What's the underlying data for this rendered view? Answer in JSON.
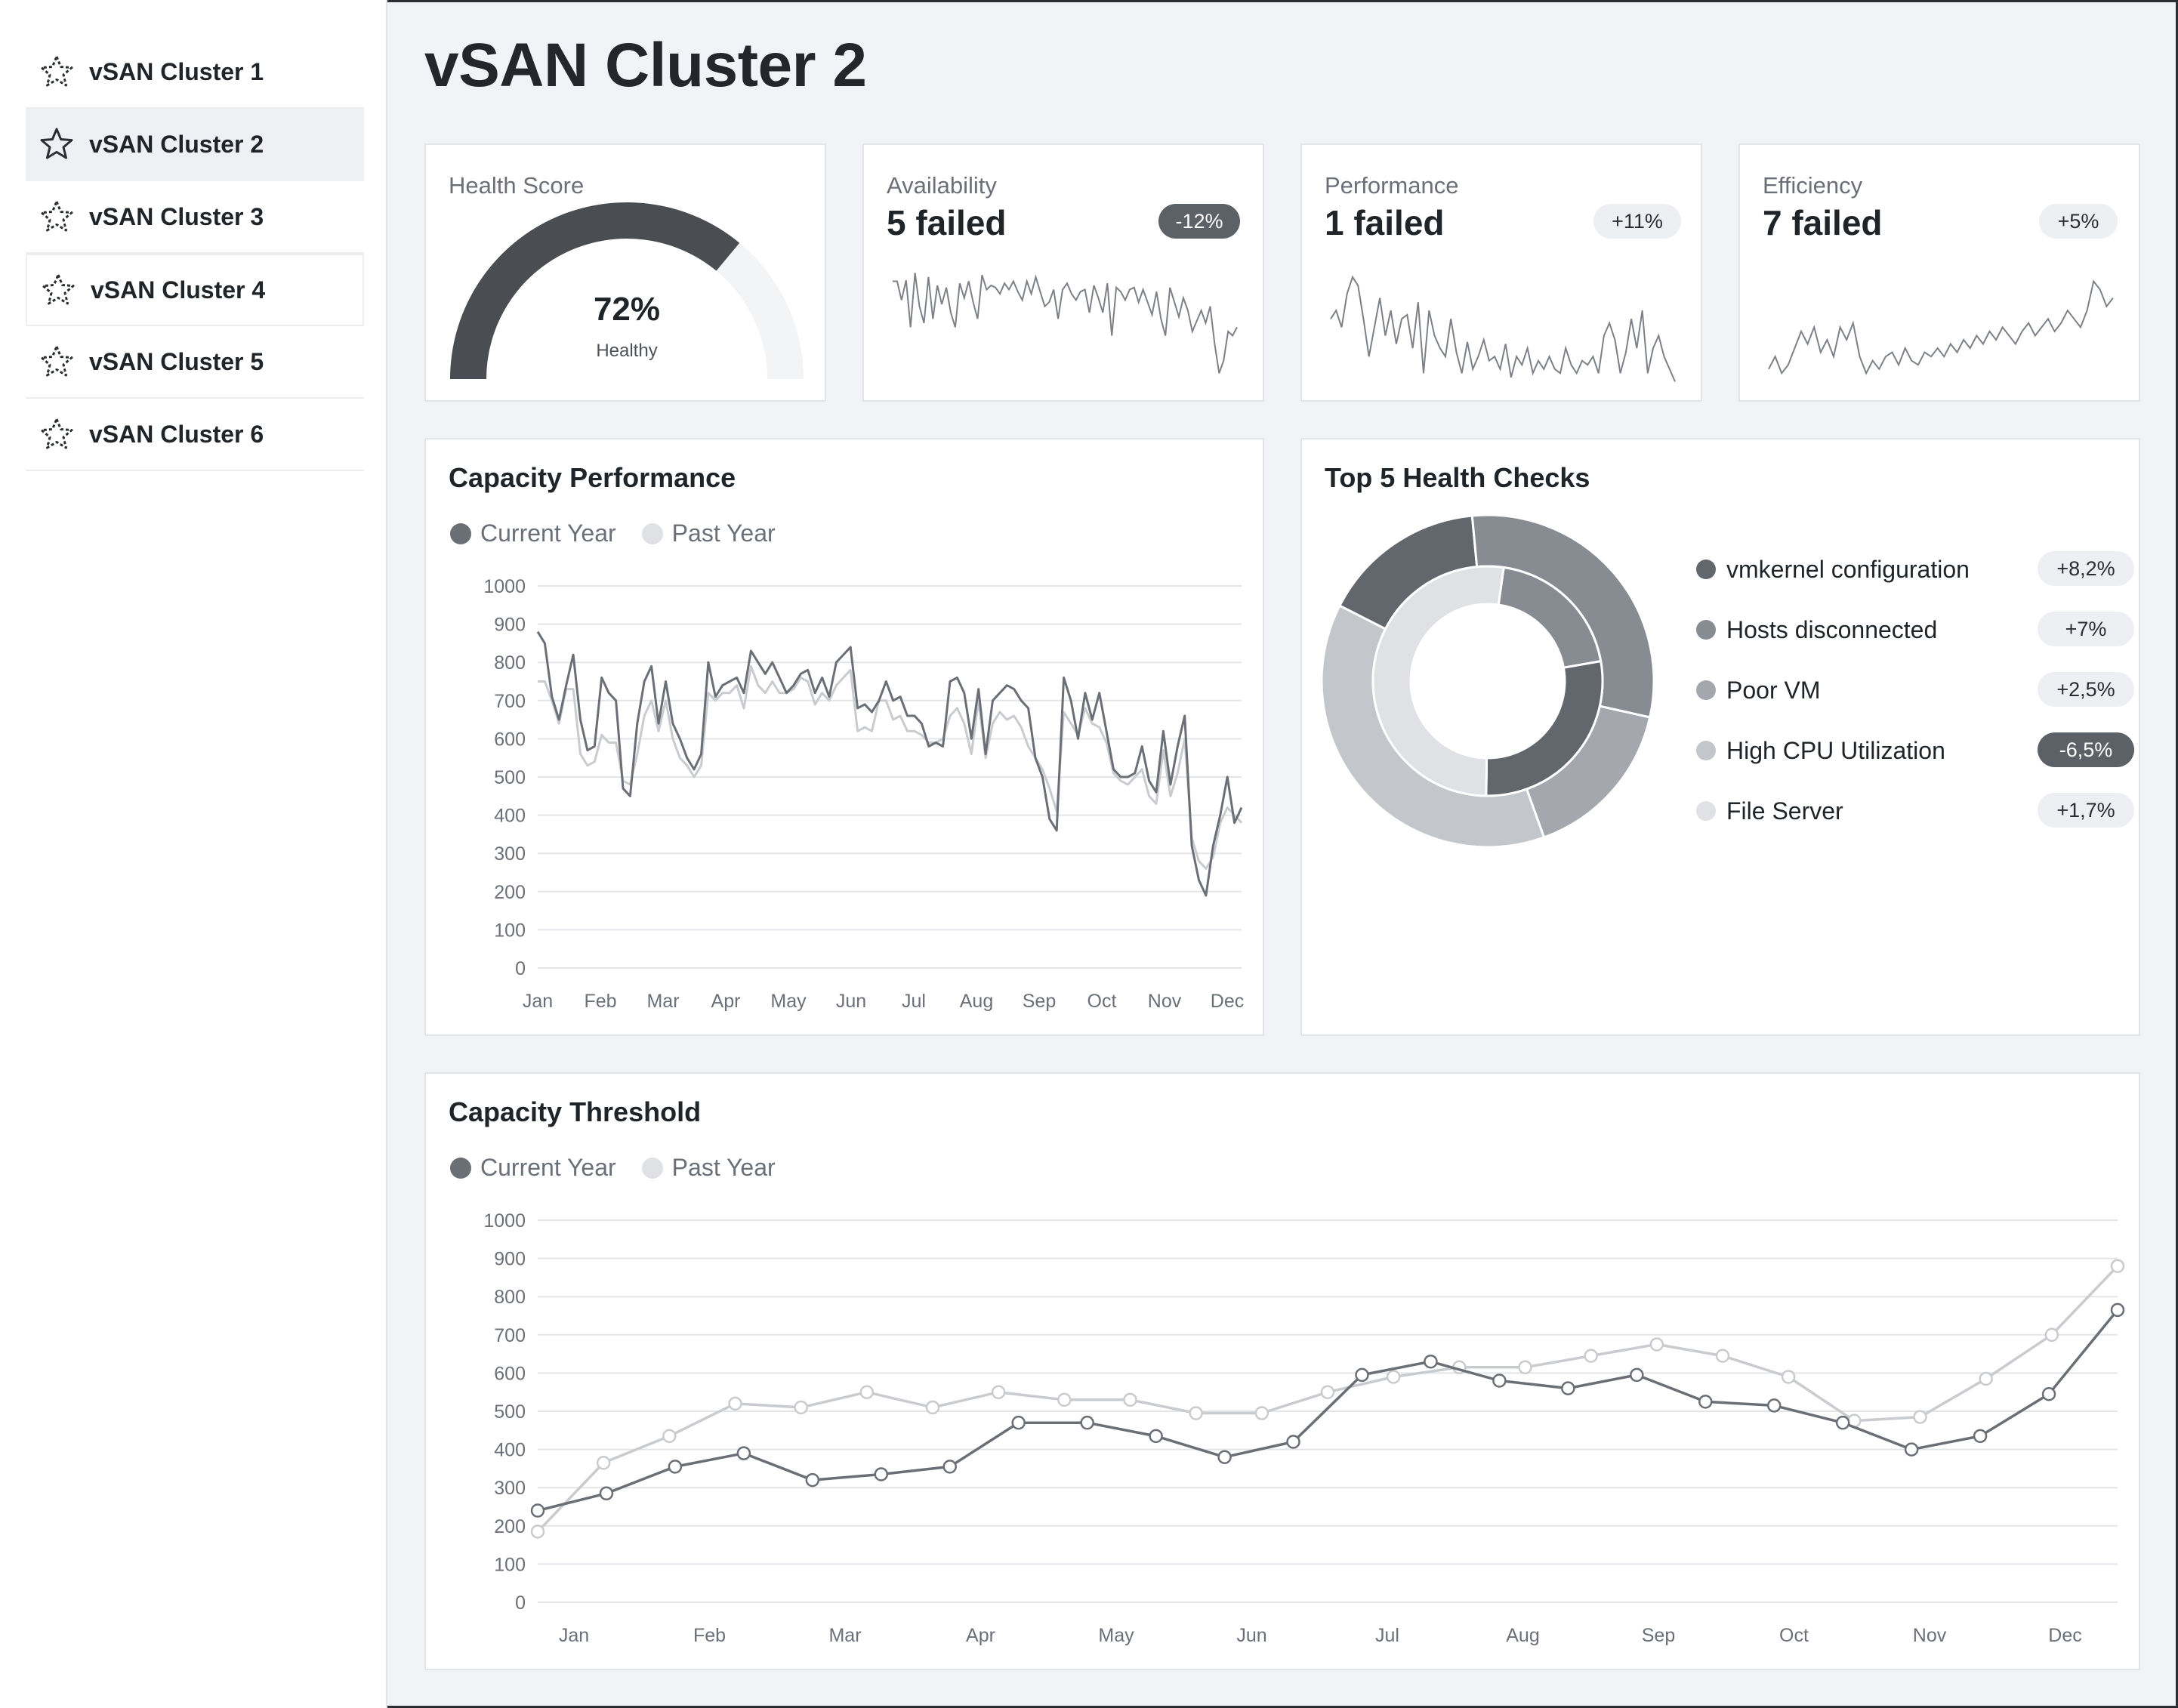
{
  "sidebar": {
    "items": [
      {
        "label": "vSAN Cluster 1",
        "icon": "star-outline-dashed-icon"
      },
      {
        "label": "vSAN Cluster 2",
        "icon": "star-outline-icon",
        "active": true
      },
      {
        "label": "vSAN Cluster 3",
        "icon": "star-outline-dashed-icon"
      },
      {
        "label": "vSAN Cluster 4",
        "icon": "star-outline-dashed-icon"
      },
      {
        "label": "vSAN Cluster 5",
        "icon": "star-outline-dashed-icon"
      },
      {
        "label": "vSAN Cluster 6",
        "icon": "star-outline-dashed-icon"
      }
    ]
  },
  "page": {
    "title": "vSAN Cluster 2"
  },
  "kpis": {
    "health": {
      "label": "Health Score",
      "value": "72%",
      "status": "Healthy",
      "fraction": 0.72
    },
    "availability": {
      "label": "Availability",
      "value": "5 failed",
      "change": "-12%"
    },
    "performance": {
      "label": "Performance",
      "value": "1 failed",
      "change": "+11%"
    },
    "efficiency": {
      "label": "Efficiency",
      "value": "7 failed",
      "change": "+5%"
    }
  },
  "capacity_performance": {
    "title": "Capacity Performance",
    "legend": [
      "Current Year",
      "Past Year"
    ]
  },
  "health_checks": {
    "title": "Top 5 Health Checks",
    "items": [
      {
        "name": "vmkernel configuration",
        "change": "+8,2%",
        "color": "#62676e"
      },
      {
        "name": "Hosts disconnected",
        "change": "+7%",
        "color": "#878b92"
      },
      {
        "name": "Poor VM",
        "change": "+2,5%",
        "color": "#a4a8ae"
      },
      {
        "name": "High CPU Utilization",
        "change": "-6,5%",
        "color": "#c3c6cb",
        "highlight": true
      },
      {
        "name": "File Server",
        "change": "+1,7%",
        "color": "#dfe1e4"
      }
    ]
  },
  "capacity_threshold": {
    "title": "Capacity Threshold",
    "legend": [
      "Current Year",
      "Past Year"
    ]
  },
  "colors": {
    "current": "#6a6f76",
    "past": "#c9cbcf",
    "accent": "#4a4d52"
  },
  "chart_data": [
    {
      "type": "line",
      "title": "Capacity Performance",
      "x_ticks": [
        "Jan",
        "Feb",
        "Mar",
        "Apr",
        "May",
        "Jun",
        "Jul",
        "Aug",
        "Sep",
        "Oct",
        "Nov",
        "Dec"
      ],
      "y_ticks": [
        "0",
        "100",
        "200",
        "300",
        "400",
        "500",
        "600",
        "700",
        "800",
        "900",
        "1000"
      ],
      "ylim": [
        0,
        1000
      ],
      "series": [
        {
          "name": "Current Year",
          "values": [
            880,
            850,
            710,
            650,
            740,
            820,
            650,
            570,
            580,
            760,
            720,
            700,
            470,
            450,
            640,
            750,
            790,
            640,
            750,
            640,
            600,
            550,
            520,
            560,
            800,
            710,
            740,
            750,
            760,
            720,
            830,
            800,
            770,
            800,
            760,
            720,
            740,
            770,
            780,
            720,
            760,
            710,
            800,
            820,
            840,
            680,
            690,
            670,
            700,
            750,
            700,
            710,
            660,
            660,
            640,
            580,
            590,
            580,
            750,
            760,
            720,
            600,
            730,
            560,
            700,
            720,
            740,
            730,
            700,
            680,
            550,
            500,
            390,
            360,
            760,
            700,
            600,
            720,
            650,
            720,
            620,
            520,
            500,
            500,
            510,
            580,
            490,
            460,
            620,
            480,
            580,
            660,
            320,
            230,
            190,
            320,
            400,
            500,
            380,
            420
          ]
        },
        {
          "name": "Past Year",
          "values": [
            750,
            750,
            700,
            640,
            730,
            730,
            560,
            530,
            540,
            610,
            590,
            590,
            490,
            480,
            560,
            660,
            700,
            620,
            700,
            600,
            550,
            530,
            500,
            530,
            720,
            700,
            720,
            720,
            740,
            680,
            790,
            740,
            720,
            750,
            720,
            720,
            730,
            760,
            750,
            690,
            720,
            700,
            740,
            760,
            780,
            620,
            630,
            620,
            700,
            700,
            650,
            660,
            620,
            620,
            610,
            590,
            590,
            600,
            660,
            680,
            640,
            560,
            700,
            550,
            640,
            670,
            650,
            660,
            630,
            580,
            550,
            520,
            470,
            410,
            670,
            640,
            610,
            680,
            640,
            630,
            590,
            510,
            490,
            480,
            500,
            520,
            450,
            430,
            570,
            450,
            510,
            600,
            340,
            280,
            260,
            290,
            380,
            420,
            400,
            380
          ]
        }
      ]
    },
    {
      "type": "pie",
      "title": "Top 5 Health Checks",
      "outer_ring": [
        {
          "name": "vmkernel configuration",
          "value": 16
        },
        {
          "name": "Hosts disconnected",
          "value": 30
        },
        {
          "name": "Poor VM",
          "value": 16
        },
        {
          "name": "High CPU Utilization",
          "value": 38
        }
      ],
      "inner_ring": [
        {
          "name": "Hosts disconnected",
          "value": 20
        },
        {
          "name": "vmkernel configuration",
          "value": 28
        },
        {
          "name": "File Server",
          "value": 52
        }
      ]
    },
    {
      "type": "line",
      "title": "Capacity Threshold",
      "x_ticks": [
        "Jan",
        "Feb",
        "Mar",
        "Apr",
        "May",
        "Jun",
        "Jul",
        "Aug",
        "Sep",
        "Oct",
        "Nov",
        "Dec"
      ],
      "y_ticks": [
        "0",
        "100",
        "200",
        "300",
        "400",
        "500",
        "600",
        "700",
        "800",
        "900",
        "1000"
      ],
      "ylim": [
        0,
        1000
      ],
      "series": [
        {
          "name": "Current Year",
          "values": [
            240,
            285,
            355,
            390,
            320,
            335,
            355,
            470,
            470,
            435,
            380,
            420,
            595,
            630,
            580,
            560,
            595,
            525,
            515,
            470,
            400,
            435,
            545,
            765
          ]
        },
        {
          "name": "Past Year",
          "values": [
            185,
            365,
            435,
            520,
            510,
            550,
            510,
            550,
            530,
            530,
            495,
            495,
            550,
            590,
            615,
            615,
            645,
            675,
            645,
            590,
            475,
            485,
            585,
            700,
            880
          ]
        }
      ]
    }
  ],
  "sparklines": {
    "availability": [
      740,
      740,
      650,
      745,
      520,
      780,
      620,
      540,
      760,
      560,
      720,
      630,
      710,
      590,
      520,
      730,
      660,
      740,
      640,
      560,
      770,
      700,
      720,
      710,
      680,
      730,
      700,
      740,
      690,
      650,
      740,
      680,
      760,
      690,
      620,
      640,
      700,
      560,
      700,
      730,
      680,
      650,
      690,
      700,
      590,
      720,
      660,
      590,
      730,
      480,
      710,
      690,
      650,
      700,
      710,
      640,
      700,
      640,
      580,
      690,
      560,
      480,
      710,
      640,
      570,
      660,
      600,
      500,
      550,
      600,
      540,
      620,
      440,
      300,
      360,
      500,
      480,
      520
    ],
    "performance": [
      560,
      600,
      520,
      680,
      760,
      720,
      560,
      380,
      520,
      660,
      480,
      600,
      440,
      560,
      580,
      420,
      640,
      300,
      600,
      480,
      420,
      380,
      560,
      400,
      300,
      450,
      320,
      380,
      460,
      360,
      380,
      320,
      440,
      280,
      380,
      340,
      420,
      300,
      360,
      320,
      380,
      320,
      300,
      420,
      340,
      300,
      360,
      340,
      380,
      300,
      480,
      540,
      460,
      300,
      400,
      560,
      420,
      600,
      300,
      420,
      480,
      380,
      320,
      260
    ],
    "efficiency": [
      320,
      380,
      300,
      340,
      420,
      500,
      440,
      520,
      400,
      460,
      380,
      520,
      460,
      540,
      380,
      300,
      360,
      320,
      380,
      400,
      340,
      420,
      360,
      340,
      400,
      380,
      420,
      380,
      440,
      400,
      460,
      420,
      480,
      440,
      500,
      460,
      520,
      480,
      440,
      500,
      540,
      480,
      520,
      560,
      500,
      540,
      600,
      560,
      520,
      600,
      740,
      700,
      620,
      660
    ]
  }
}
